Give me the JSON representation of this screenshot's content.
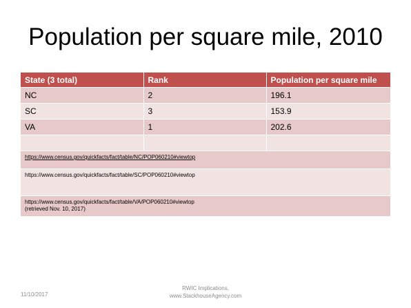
{
  "slide": {
    "title": "Population per square mile, 2010"
  },
  "table": {
    "headers": [
      "State (3 total)",
      "Rank",
      "Population per square mile"
    ],
    "rows": [
      [
        "NC",
        "2",
        "196.1"
      ],
      [
        "SC",
        "3",
        "153.9"
      ],
      [
        "VA",
        "1",
        "202.6"
      ]
    ],
    "sources": [
      "https://www.census.gov/quickfacts/fact/table/NC/POP060210#viewtop",
      "https://www.census.gov/quickfacts/fact/table/SC/POP060210#viewtop",
      "https://www.census.gov/quickfacts/fact/table/VA/POP060210#viewtop"
    ],
    "retrieved_note": "(retrieved Nov. 10, 2017)"
  },
  "footer": {
    "date": "11/10/2017",
    "center_line1": "RWIC Implications,",
    "center_line2": "www.StackhouseAgency.com"
  },
  "colors": {
    "header_bg": "#c0504d",
    "row_dark": "#e6c9c8",
    "row_light": "#f2e3e3",
    "footer_text": "#8c8c8c"
  }
}
